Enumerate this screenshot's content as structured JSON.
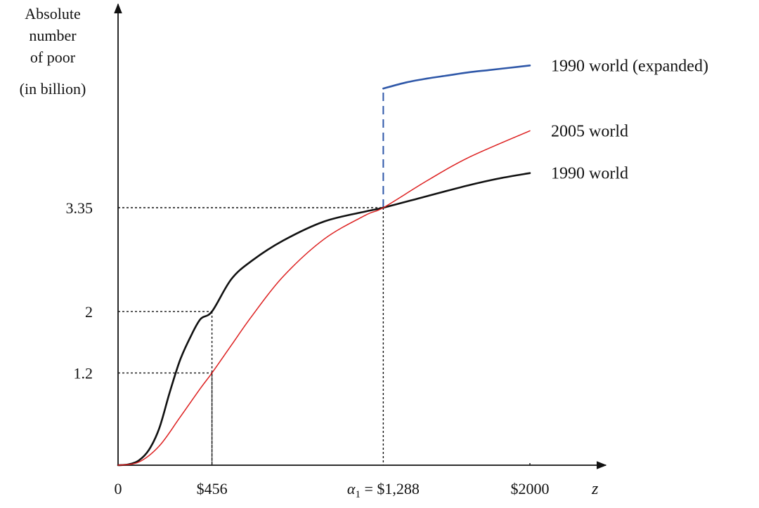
{
  "chart_data": {
    "type": "line",
    "ylabel": [
      "Absolute",
      "number",
      "of poor",
      "(in billion)"
    ],
    "xlabel": "z",
    "xlim": [
      0,
      2400
    ],
    "ylim": [
      0,
      5.3
    ],
    "x_ticks": [
      {
        "value": 0,
        "label": "0"
      },
      {
        "value": 456,
        "label": "$456"
      },
      {
        "value": 1288,
        "label": "α₁ = $1,288"
      },
      {
        "value": 2000,
        "label": "$2000"
      }
    ],
    "y_ticks": [
      {
        "value": 1.2,
        "label": "1.2"
      },
      {
        "value": 2,
        "label": "2"
      },
      {
        "value": 3.35,
        "label": "3.35"
      }
    ],
    "series": [
      {
        "name": "1990 world",
        "color": "#111111",
        "x": [
          0,
          50,
          100,
          150,
          200,
          250,
          300,
          350,
          400,
          456,
          550,
          650,
          800,
          1000,
          1200,
          1288,
          1500,
          1700,
          1850,
          2000
        ],
        "y": [
          0,
          0.01,
          0.06,
          0.2,
          0.48,
          0.94,
          1.36,
          1.66,
          1.9,
          2.0,
          2.42,
          2.66,
          2.92,
          3.17,
          3.3,
          3.35,
          3.5,
          3.64,
          3.73,
          3.8
        ]
      },
      {
        "name": "2005 world",
        "color": "#dd2020",
        "x": [
          0,
          100,
          200,
          300,
          400,
          456,
          550,
          650,
          800,
          1000,
          1200,
          1288,
          1500,
          1700,
          2000
        ],
        "y": [
          0,
          0.04,
          0.25,
          0.62,
          1.0,
          1.2,
          1.56,
          1.94,
          2.45,
          2.94,
          3.25,
          3.35,
          3.7,
          4.0,
          4.35
        ]
      },
      {
        "name": "1990 world (expanded)",
        "color": "#2e57a8",
        "x": [
          1288,
          1400,
          1500,
          1600,
          1700,
          1800,
          1900,
          2000
        ],
        "y": [
          4.9,
          4.98,
          5.03,
          5.07,
          5.11,
          5.14,
          5.17,
          5.2
        ]
      }
    ],
    "annotations": [
      {
        "type": "dashed-vertical",
        "x": 1288,
        "y_from": 3.35,
        "y_to": 4.9,
        "color": "#2e57a8"
      },
      {
        "type": "dotted-guide",
        "x": 456,
        "y": 2
      },
      {
        "type": "dotted-guide",
        "x": 456,
        "y": 1.2
      },
      {
        "type": "dotted-guide",
        "x": 1288,
        "y": 3.35
      },
      {
        "type": "dotted-vertical",
        "x": 2000,
        "y_from": 0,
        "y_to": 0.05
      }
    ]
  }
}
